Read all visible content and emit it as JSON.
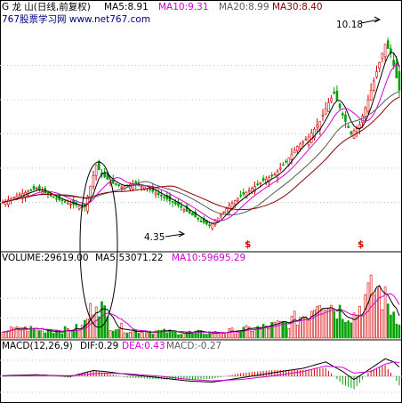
{
  "chart_data": [
    {
      "type": "candlestick",
      "panel": "price",
      "header": {
        "title": "G 龙  山(日线,前复权)",
        "ma5": "MA5:8.91",
        "ma10": "MA10:9.31",
        "ma20": "MA20:8.99",
        "ma30": "MA30:8.40",
        "watermark": "767股票学习网 www.net767.com"
      },
      "annotations": {
        "high_label": "10.18",
        "low_label": "4.35",
        "marker_symbol": "$"
      },
      "ylim": [
        3.6,
        10.8
      ],
      "gridlines": [
        9.5,
        8.4,
        7.3,
        6.2,
        5.1
      ],
      "price_path": [
        [
          0,
          5.1
        ],
        [
          6,
          5.35
        ],
        [
          12,
          5.55
        ],
        [
          18,
          5.25
        ],
        [
          24,
          5.05
        ],
        [
          29,
          4.95
        ],
        [
          33,
          6.3
        ],
        [
          35,
          6.0
        ],
        [
          38,
          5.75
        ],
        [
          42,
          5.6
        ],
        [
          46,
          5.7
        ],
        [
          50,
          5.6
        ],
        [
          54,
          5.4
        ],
        [
          58,
          5.2
        ],
        [
          62,
          5.0
        ],
        [
          66,
          4.75
        ],
        [
          70,
          4.5
        ],
        [
          73,
          4.35
        ],
        [
          76,
          4.6
        ],
        [
          80,
          5.0
        ],
        [
          84,
          5.3
        ],
        [
          88,
          5.55
        ],
        [
          92,
          5.8
        ],
        [
          96,
          6.0
        ],
        [
          100,
          6.4
        ],
        [
          104,
          6.9
        ],
        [
          108,
          7.2
        ],
        [
          112,
          7.7
        ],
        [
          115,
          8.3
        ],
        [
          117,
          8.6
        ],
        [
          120,
          7.9
        ],
        [
          123,
          7.3
        ],
        [
          126,
          7.6
        ],
        [
          129,
          8.4
        ],
        [
          132,
          9.3
        ],
        [
          135,
          10.18
        ],
        [
          137,
          9.9
        ],
        [
          140,
          8.7
        ]
      ],
      "ma_colors": {
        "ma5": "#000000",
        "ma10": "#d400d4",
        "ma20": "#5a5a5a",
        "ma30": "#8b0000"
      }
    },
    {
      "type": "bar",
      "panel": "volume",
      "header": {
        "volume": "VOLUME:29619.00",
        "ma5": "MA5:53071.22",
        "ma10": "MA10:59695.29"
      },
      "ylim": [
        0,
        110000
      ],
      "volume_path": [
        [
          0,
          12000
        ],
        [
          10,
          14000
        ],
        [
          20,
          11000
        ],
        [
          28,
          16000
        ],
        [
          31,
          40000
        ],
        [
          33,
          70000
        ],
        [
          35,
          45000
        ],
        [
          38,
          20000
        ],
        [
          45,
          12000
        ],
        [
          60,
          9000
        ],
        [
          75,
          8000
        ],
        [
          90,
          15000
        ],
        [
          100,
          22000
        ],
        [
          108,
          38000
        ],
        [
          112,
          70000
        ],
        [
          116,
          50000
        ],
        [
          120,
          40000
        ],
        [
          124,
          35000
        ],
        [
          128,
          60000
        ],
        [
          132,
          75000
        ],
        [
          136,
          50000
        ],
        [
          140,
          30000
        ]
      ]
    },
    {
      "type": "bar",
      "panel": "macd",
      "header": {
        "macd": "MACD(12,26,9)",
        "dif": "DIF:0.29",
        "dea": "DEA:0.43",
        "macdval": "MACD:-0.27"
      },
      "ylim": [
        -0.75,
        0.75
      ],
      "dif_path": [
        [
          0,
          0.02
        ],
        [
          12,
          0.05
        ],
        [
          24,
          0.0
        ],
        [
          32,
          0.18
        ],
        [
          36,
          0.15
        ],
        [
          44,
          0.06
        ],
        [
          56,
          -0.05
        ],
        [
          66,
          -0.15
        ],
        [
          74,
          -0.18
        ],
        [
          84,
          -0.05
        ],
        [
          96,
          0.12
        ],
        [
          106,
          0.25
        ],
        [
          114,
          0.45
        ],
        [
          120,
          0.15
        ],
        [
          124,
          -0.1
        ],
        [
          130,
          0.25
        ],
        [
          135,
          0.55
        ],
        [
          138,
          0.45
        ],
        [
          140,
          0.29
        ]
      ],
      "dea_path": [
        [
          0,
          0.01
        ],
        [
          12,
          0.03
        ],
        [
          24,
          0.02
        ],
        [
          32,
          0.08
        ],
        [
          36,
          0.1
        ],
        [
          44,
          0.08
        ],
        [
          56,
          0.0
        ],
        [
          66,
          -0.1
        ],
        [
          74,
          -0.14
        ],
        [
          84,
          -0.1
        ],
        [
          96,
          0.02
        ],
        [
          106,
          0.15
        ],
        [
          114,
          0.32
        ],
        [
          120,
          0.28
        ],
        [
          124,
          0.1
        ],
        [
          130,
          0.15
        ],
        [
          135,
          0.38
        ],
        [
          138,
          0.45
        ],
        [
          140,
          0.43
        ]
      ]
    }
  ],
  "colors": {
    "up": "#d40000",
    "down": "#00a000",
    "grid": "#c8c8c8",
    "text": "#000000",
    "ma10": "#d400d4",
    "ma20": "#5a5a5a",
    "ma30": "#8b0000",
    "dea": "#d400d4",
    "macd_label": "#5a5a5a",
    "watermark": "#000080"
  }
}
